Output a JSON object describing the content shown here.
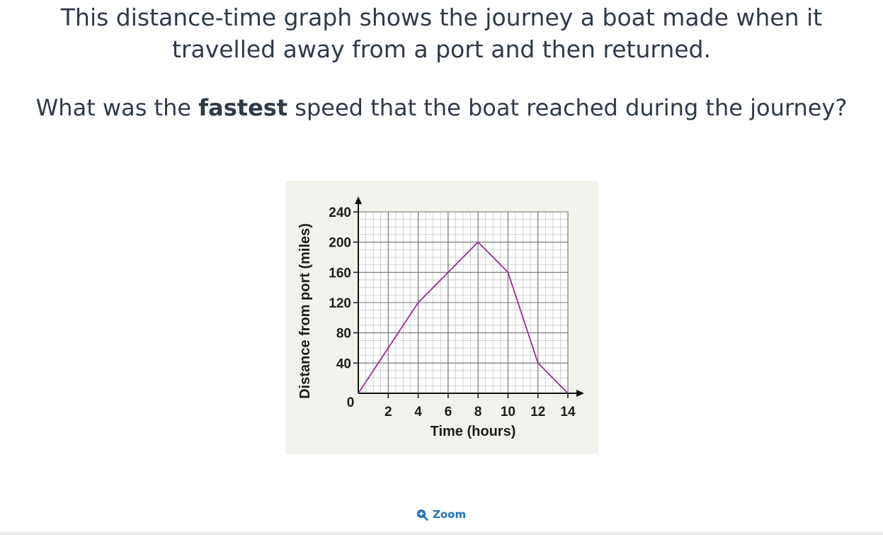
{
  "question": {
    "intro_line1": "This distance-time graph shows the journey a boat made when it",
    "intro_line2": "travelled away from a port and then returned.",
    "ask_before": "What was the ",
    "ask_bold": "fastest",
    "ask_after": " speed that the boat reached during the journey?"
  },
  "chart_data": {
    "type": "line",
    "title": "",
    "xlabel": "Time (hours)",
    "ylabel": "Distance from port (miles)",
    "xlim": [
      0,
      14
    ],
    "ylim": [
      0,
      240
    ],
    "x_ticks": [
      2,
      4,
      6,
      8,
      10,
      12,
      14
    ],
    "y_ticks": [
      40,
      80,
      120,
      160,
      200,
      240
    ],
    "origin_label": "0",
    "grid": true,
    "minor_grid_per_major": 4,
    "line_color": "#9b2d9b",
    "series": [
      {
        "x": [
          0,
          4,
          8,
          10,
          12,
          14
        ],
        "y": [
          0,
          120,
          200,
          160,
          40,
          0
        ]
      }
    ]
  },
  "controls": {
    "zoom_label": "Zoom",
    "zoom_icon": "zoom-in-icon"
  },
  "colors": {
    "text": "#2f3a4a",
    "accent": "#1f6fb5",
    "figure_bg": "#f2f2ed"
  }
}
